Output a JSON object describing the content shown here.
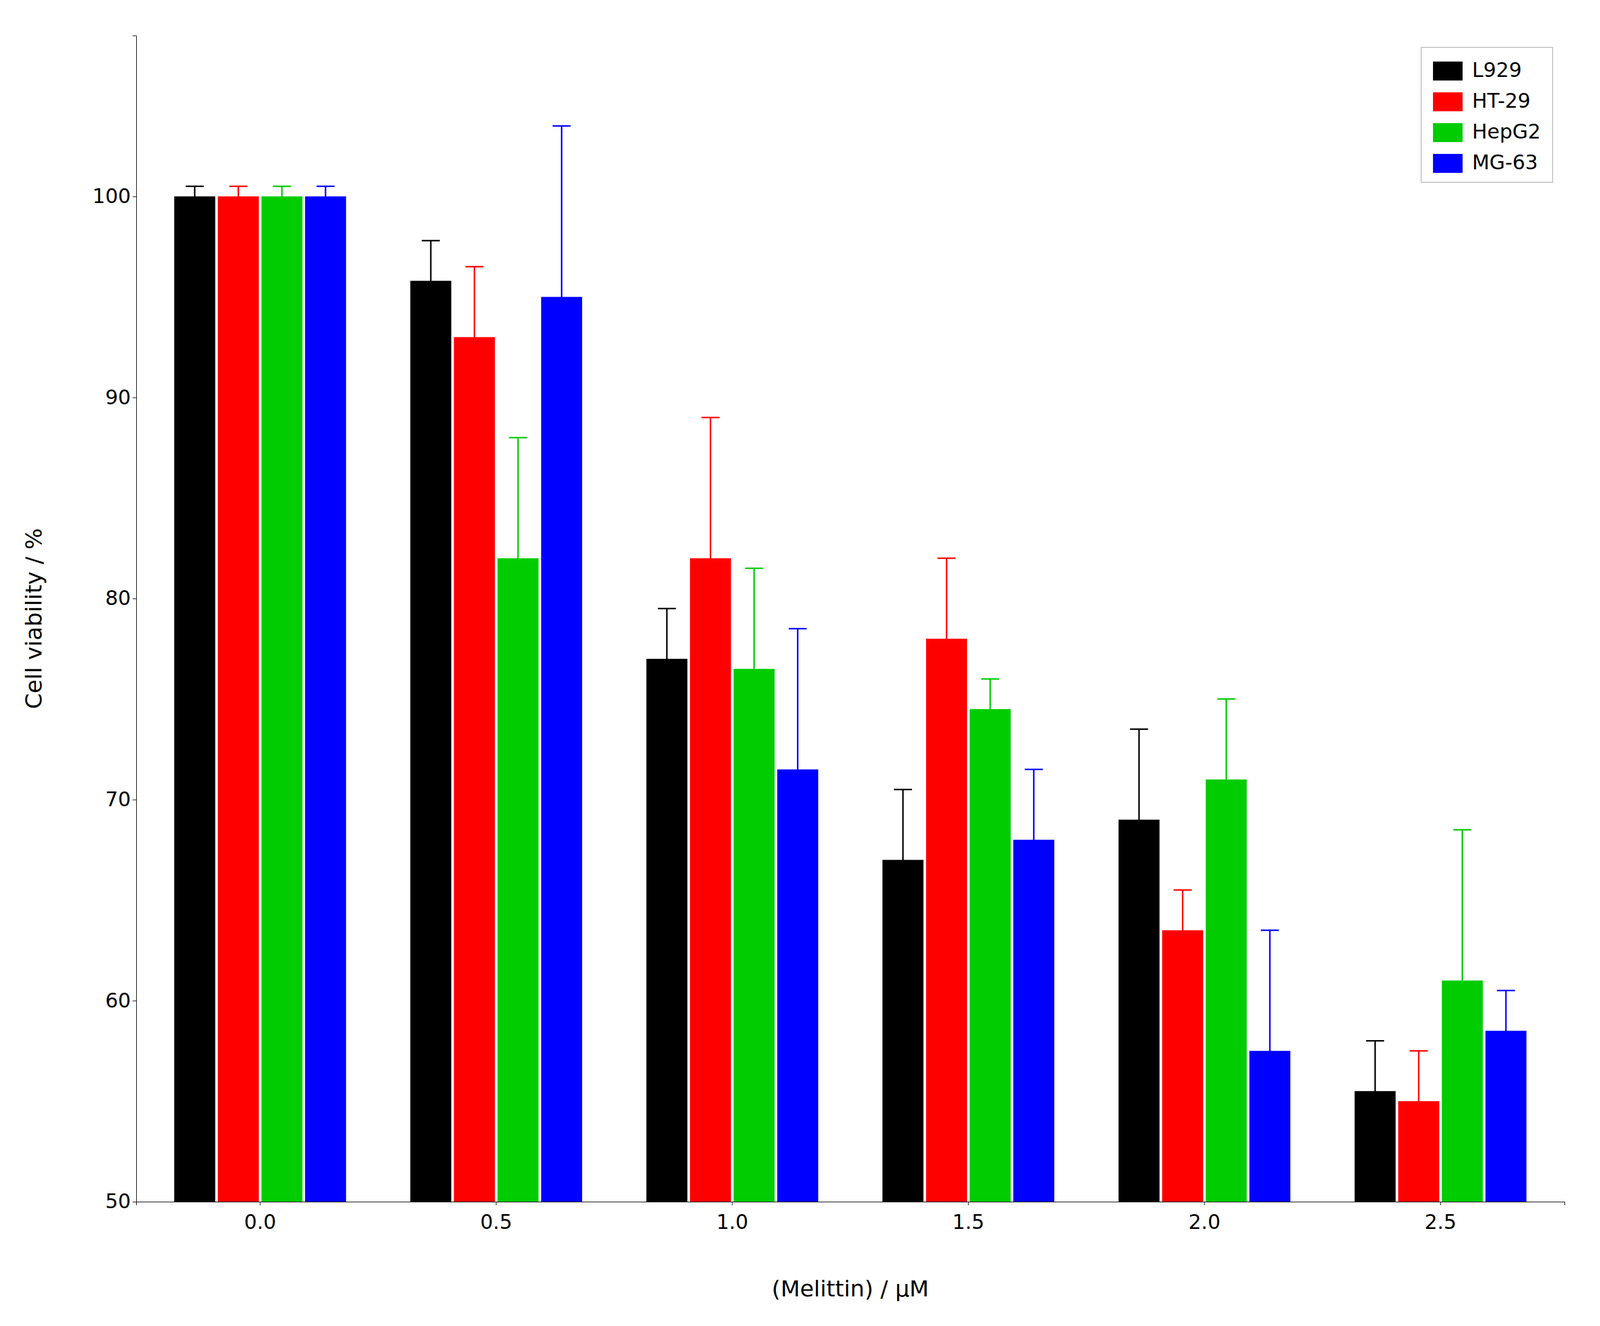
{
  "chart_data": {
    "type": "bar",
    "xlabel": "(Melittin)  /  μM",
    "ylabel": "Cell viability  /  %",
    "categories": [
      "0.0",
      "0.5",
      "1.0",
      "1.5",
      "2.0",
      "2.5"
    ],
    "series": [
      {
        "name": "L929",
        "color": "#000000",
        "values": [
          100.0,
          95.8,
          77.0,
          67.0,
          69.0,
          55.5
        ],
        "errors": [
          0.5,
          2.0,
          2.5,
          3.5,
          4.5,
          2.5
        ]
      },
      {
        "name": "HT-29",
        "color": "#ff0000",
        "values": [
          100.0,
          93.0,
          82.0,
          78.0,
          63.5,
          55.0
        ],
        "errors": [
          0.5,
          3.5,
          7.0,
          4.0,
          2.0,
          2.5
        ]
      },
      {
        "name": "HepG2",
        "color": "#00cc00",
        "values": [
          100.0,
          82.0,
          76.5,
          74.5,
          71.0,
          61.0
        ],
        "errors": [
          0.5,
          6.0,
          5.0,
          1.5,
          4.0,
          7.5
        ]
      },
      {
        "name": "MG-63",
        "color": "#0000ff",
        "values": [
          100.0,
          95.0,
          71.5,
          68.0,
          57.5,
          58.5
        ],
        "errors": [
          0.5,
          8.5,
          7.0,
          3.5,
          6.0,
          2.0
        ]
      }
    ],
    "ylim": [
      50,
      108
    ],
    "yticks": [
      50,
      60,
      70,
      80,
      90,
      100
    ],
    "legend": "upper right",
    "grid": false
  }
}
